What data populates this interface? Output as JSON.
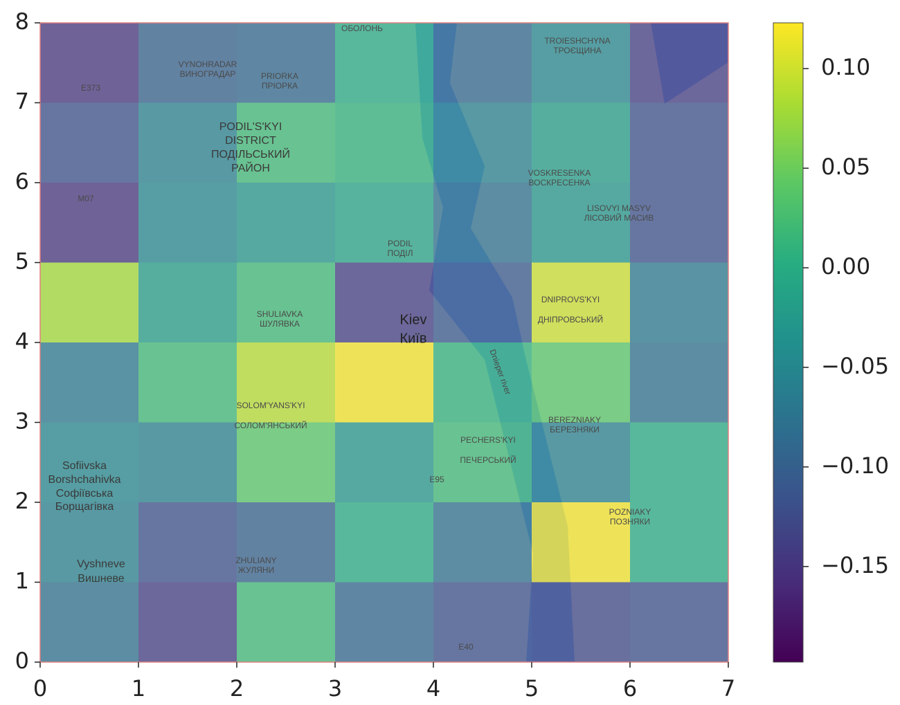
{
  "chart_data": {
    "type": "heatmap",
    "xlim": [
      0,
      7
    ],
    "ylim": [
      0,
      8
    ],
    "xticks": [
      0,
      1,
      2,
      3,
      4,
      5,
      6,
      7
    ],
    "yticks": [
      0,
      1,
      2,
      3,
      4,
      5,
      6,
      7,
      8
    ],
    "z": [
      [
        -0.08,
        -0.14,
        0.02,
        -0.09,
        -0.12,
        -0.13,
        -0.12
      ],
      [
        -0.06,
        -0.12,
        -0.1,
        0.0,
        -0.08,
        0.12,
        0.0
      ],
      [
        -0.05,
        -0.06,
        0.04,
        -0.03,
        0.02,
        -0.06,
        0.0
      ],
      [
        -0.07,
        0.02,
        0.09,
        0.12,
        0.01,
        0.04,
        -0.08
      ],
      [
        0.08,
        -0.02,
        0.02,
        -0.14,
        -0.11,
        0.1,
        -0.07
      ],
      [
        -0.15,
        -0.05,
        -0.03,
        -0.01,
        -0.08,
        -0.03,
        -0.12
      ],
      [
        -0.12,
        -0.06,
        0.02,
        0.01,
        -0.06,
        -0.02,
        -0.12
      ],
      [
        -0.15,
        -0.1,
        -0.09,
        0.0,
        -0.09,
        -0.05,
        -0.14
      ]
    ],
    "colormap": "viridis",
    "clim": [
      -0.198,
      0.123
    ],
    "cticks": [
      {
        "value": 0.1,
        "label": "0.10"
      },
      {
        "value": 0.05,
        "label": "0.05"
      },
      {
        "value": 0.0,
        "label": "0.00"
      },
      {
        "value": -0.05,
        "label": "−0.05"
      },
      {
        "value": -0.1,
        "label": "−0.10"
      },
      {
        "value": -0.15,
        "label": "−0.15"
      }
    ],
    "map_labels": [
      "Kiev",
      "Київ",
      "PODIL'S'KYI",
      "DISTRICT",
      "ПОДІЛЬСЬКИЙ",
      "РАЙОН",
      "VYNOHRADAR",
      "ВИНОГРАДАР",
      "PRIORKA",
      "ПРІОРКА",
      "TROIESHCHYNA",
      "ТРОЄЩИНА",
      "VOSKRESENKA",
      "ВОСКРЕСЕНКА",
      "LISOVYI MASYV",
      "ЛІСОВИЙ МАСИВ",
      "PODIL",
      "ПОДІЛ",
      "SHULIAVKA",
      "ШУЛЯВКА",
      "DNIPROVS'KYI",
      "ДНІПРОВСЬКИЙ",
      "SOLOM'YANS'KYI",
      "СОЛОМ'ЯНСЬКИЙ",
      "PECHERS'KYI",
      "ПЕЧЕРСЬКИЙ",
      "BEREZNIAKY",
      "БЕРЕЗНЯКИ",
      "POZNIAKY",
      "ПОЗНЯКИ",
      "ZHULIANY",
      "ЖУЛЯНИ",
      "Sofiivska",
      "Borshchahivka",
      "Софіївська",
      "Борщагівка",
      "Vyshneve",
      "Вишневе",
      "Dnieper river",
      "M07",
      "E95",
      "E40",
      "E373",
      "ОБОЛОНЬ"
    ]
  }
}
